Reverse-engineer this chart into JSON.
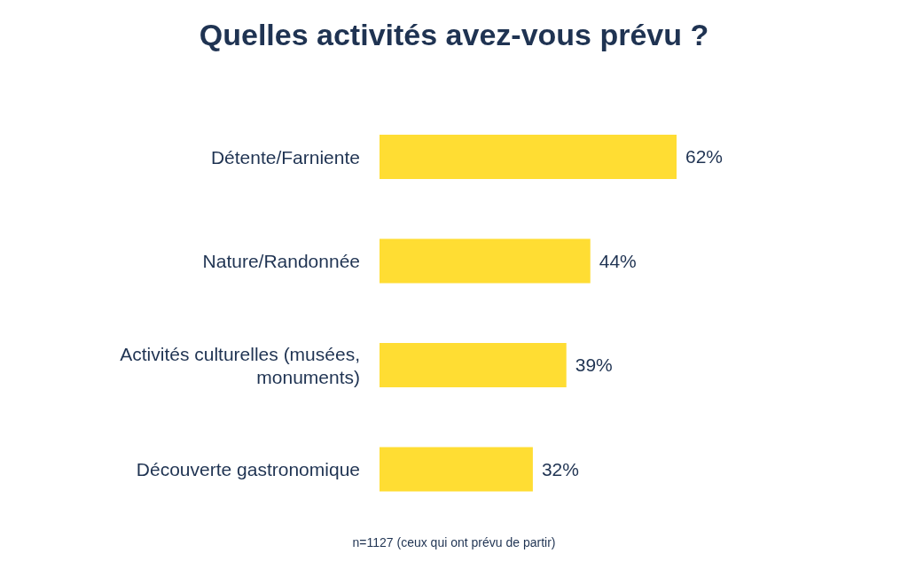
{
  "chart_data": {
    "type": "bar",
    "orientation": "horizontal",
    "title": "Quelles activités avez-vous prévu ?",
    "categories": [
      "Détente/Farniente",
      "Nature/Randonnée",
      "Activités culturelles (musées, monuments)",
      "Découverte gastronomique"
    ],
    "values": [
      62,
      44,
      39,
      32
    ],
    "color": "#ffdd33",
    "value_labels": [
      "62%",
      "44%",
      "39%",
      "32%"
    ],
    "annotations": [
      "n=1127 (ceux qui ont prévu de partir)"
    ],
    "grid": false,
    "legend": false
  }
}
